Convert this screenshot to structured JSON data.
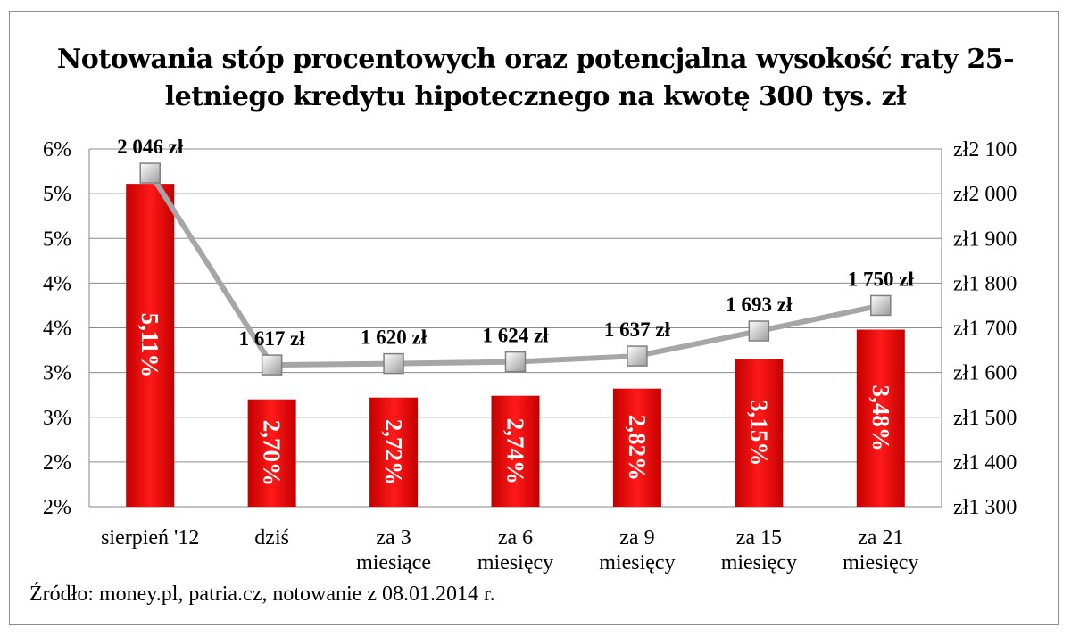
{
  "chart_data": {
    "type": "bar",
    "title": "Notowania stóp procentowych oraz potencjalna wysokość raty 25-\nletniego kredytu hipotecznego na kwotę 300 tys. zł",
    "categories": [
      [
        "sierpień '12"
      ],
      [
        "dziś"
      ],
      [
        "za 3",
        "miesiące"
      ],
      [
        "za 6",
        "miesięcy"
      ],
      [
        "za 9",
        "miesięcy"
      ],
      [
        "za 15",
        "miesięcy"
      ],
      [
        "za 21",
        "miesięcy"
      ]
    ],
    "series": [
      {
        "type": "bar",
        "axis": "left",
        "color": "#e60000",
        "values": [
          5.11,
          2.7,
          2.72,
          2.74,
          2.82,
          3.15,
          3.48
        ],
        "labels": [
          "5,11%",
          "2,70%",
          "2,72%",
          "2,74%",
          "2,82%",
          "3,15%",
          "3,48%"
        ]
      },
      {
        "type": "line",
        "axis": "right",
        "color": "#a6a6a6",
        "values": [
          2046,
          1617,
          1620,
          1624,
          1637,
          1693,
          1750
        ],
        "labels": [
          "2 046 zł",
          "1 617 zł",
          "1 620 zł",
          "1 624 zł",
          "1 637 zł",
          "1 693 zł",
          "1 750 zł"
        ]
      }
    ],
    "y_left": {
      "ylim": [
        1.5,
        5.5
      ],
      "ticks": [
        "2%",
        "2%",
        "3%",
        "3%",
        "4%",
        "4%",
        "5%",
        "5%",
        "6%"
      ]
    },
    "y_right": {
      "ylim": [
        1300,
        2100
      ],
      "ticks": [
        "zł1 300",
        "zł1 400",
        "zł1 500",
        "zł1 600",
        "zł1 700",
        "zł1 800",
        "zł1 900",
        "zł2 000",
        "zł2 100"
      ]
    },
    "grid": true,
    "legend": "none"
  },
  "source": "Źródło: money.pl, patria.cz, notowanie z 08.01.2014  r."
}
